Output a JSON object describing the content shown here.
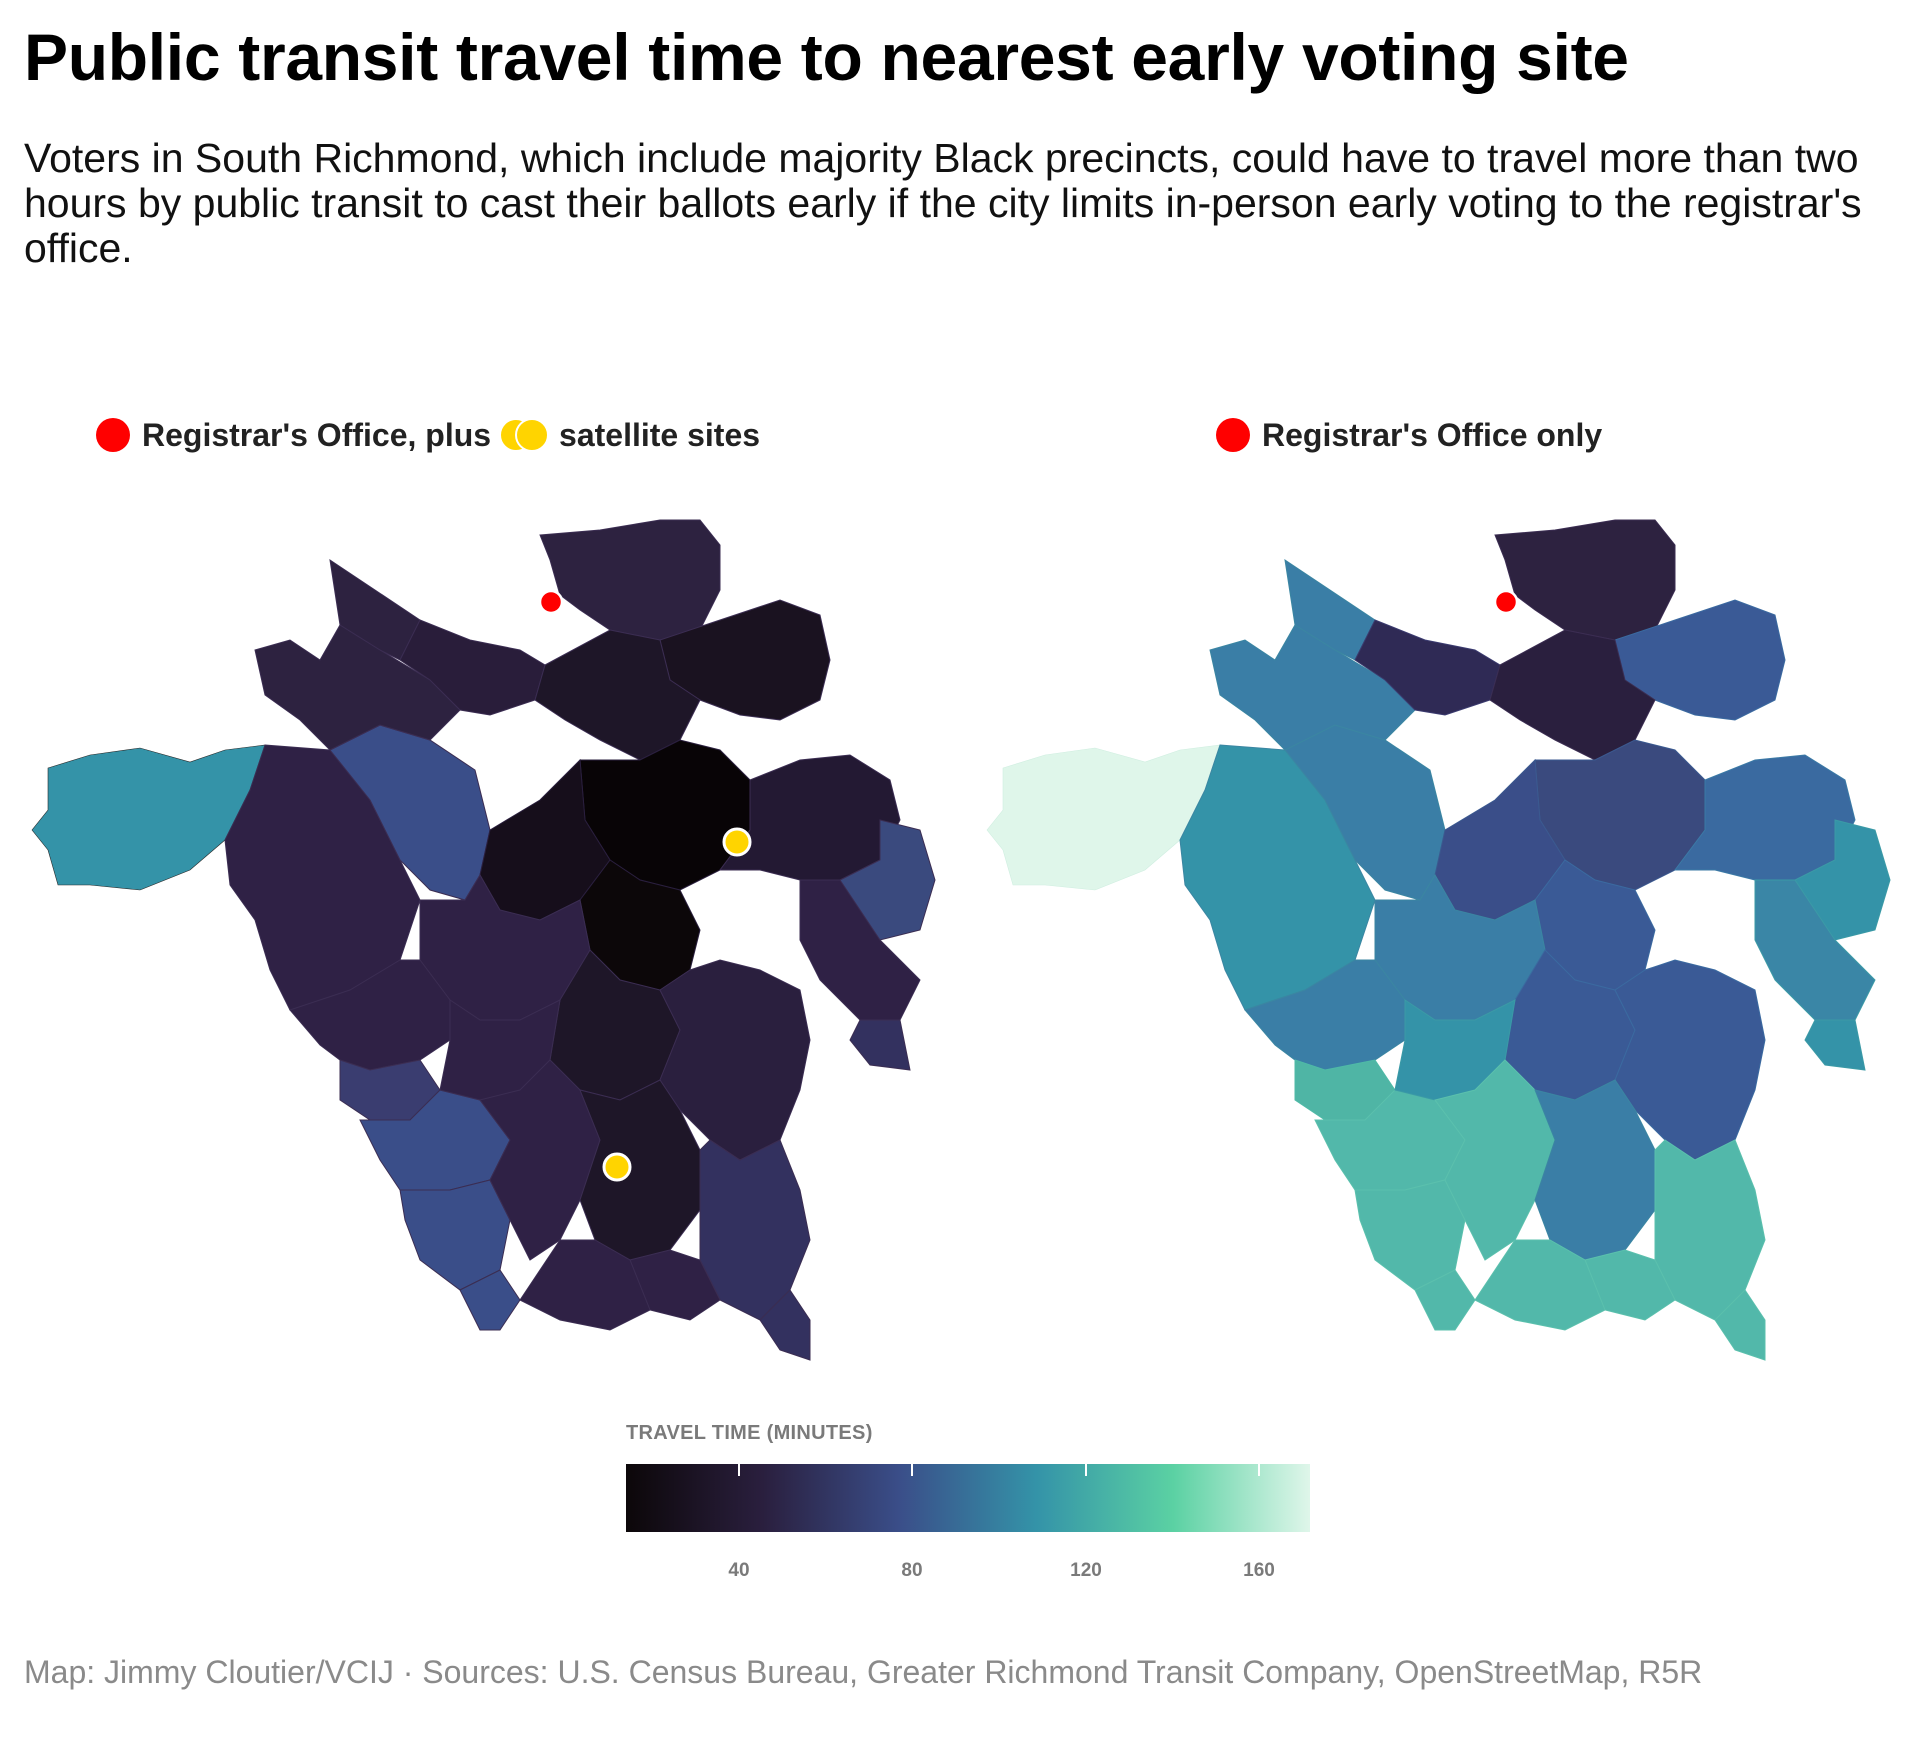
{
  "header": {
    "title": "Public transit travel time to nearest early voting site",
    "subtitle": "Voters in South Richmond, which include majority Black precincts, could have to travel more than two hours by public transit to cast their ballots early if the city limits in-person early voting to the registrar's office."
  },
  "panels": [
    {
      "label_before": "Registrar's Office, plus",
      "label_after": "satellite sites",
      "markers": [
        "Registrar's Office (red)",
        "satellite site (yellow)",
        "satellite site (yellow)"
      ]
    },
    {
      "label": "Registrar's Office only",
      "markers": [
        "Registrar's Office (red)"
      ]
    }
  ],
  "legend": {
    "title": "TRAVEL TIME (MINUTES)",
    "ticks": [
      "40",
      "80",
      "120",
      "160"
    ],
    "colors": [
      "#0c0709",
      "#2a1f3e",
      "#3a4e89",
      "#3493a8",
      "#5bd1a3",
      "#dff6ea"
    ]
  },
  "credits": "Map: Jimmy Cloutier/VCIJ · Sources: U.S. Census Bureau, Greater Richmond Transit Company, OpenStreetMap, R5R",
  "marker_colors": {
    "registrar": "#ff0000",
    "satellite": "#ffd400"
  }
}
